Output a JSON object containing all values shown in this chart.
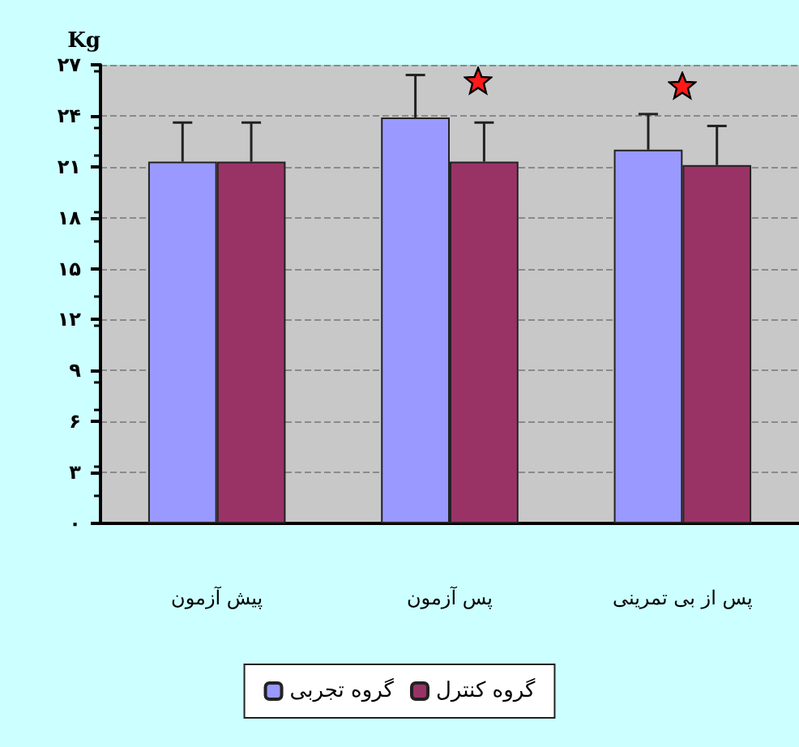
{
  "chart_data": {
    "type": "bar",
    "ylabel": "Kg",
    "categories": [
      "پیش آزمون",
      "پس آزمون",
      "پس از بی تمرینی"
    ],
    "series": [
      {
        "name": "گروه تجربی",
        "color": "#9999ff",
        "values": [
          21.3,
          23.9,
          22.0
        ],
        "errors": [
          [
            21.3,
            23.6
          ],
          [
            23.9,
            26.4
          ],
          [
            22.0,
            24.1
          ]
        ]
      },
      {
        "name": "گروه کنترل",
        "color": "#993366",
        "values": [
          21.3,
          21.3,
          21.1
        ],
        "errors": [
          [
            21.3,
            23.6
          ],
          [
            21.3,
            23.6
          ],
          [
            21.1,
            23.4
          ]
        ]
      }
    ],
    "ylim": [
      0,
      27
    ],
    "yticks": [
      {
        "value": 0,
        "label": "۰"
      },
      {
        "value": 3,
        "label": "۳"
      },
      {
        "value": 6,
        "label": "۶"
      },
      {
        "value": 9,
        "label": "۹"
      },
      {
        "value": 12,
        "label": "۱۲"
      },
      {
        "value": 15,
        "label": "۱۵"
      },
      {
        "value": 18,
        "label": "۱۸"
      },
      {
        "value": 21,
        "label": "۲۱"
      },
      {
        "value": 24,
        "label": "۲۴"
      },
      {
        "value": 27,
        "label": "۲۷"
      }
    ],
    "grid": "y",
    "legend": "bottom"
  }
}
